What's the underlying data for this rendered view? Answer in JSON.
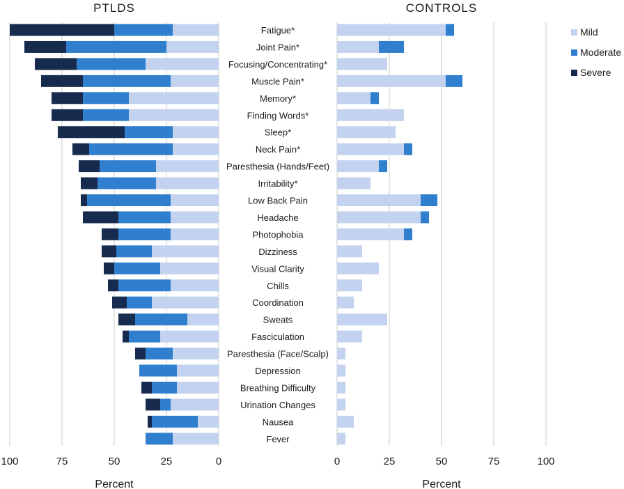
{
  "colors": {
    "Mild": "#c3d2ee",
    "Moderate": "#2f7fce",
    "Severe": "#172b4f",
    "grid": "#d4d4d4"
  },
  "chart_data": {
    "type": "bar",
    "orientation": "horizontal",
    "stacked": true,
    "categories": [
      "Fatigue*",
      "Joint Pain*",
      "Focusing/Concentrating*",
      "Muscle Pain*",
      "Memory*",
      "Finding Words*",
      "Sleep*",
      "Neck Pain*",
      "Paresthesia (Hands/Feet)",
      "Irritability*",
      "Low Back Pain",
      "Headache",
      "Photophobia",
      "Dizziness",
      "Visual Clarity",
      "Chills",
      "Coordination",
      "Sweats",
      "Fasciculation",
      "Paresthesia (Face/Scalp)",
      "Depression",
      "Breathing Difficulty",
      "Urination Changes",
      "Nausea",
      "Fever"
    ],
    "legend": {
      "entries": [
        "Mild",
        "Moderate",
        "Severe"
      ],
      "placement": "top-right"
    },
    "panels": [
      {
        "title": "PTLDS",
        "xlabel": "Percent",
        "xlim": [
          0,
          100
        ],
        "xticks": [
          "100",
          "75",
          "50",
          "25",
          "0"
        ],
        "direction": "reversed",
        "series": [
          {
            "name": "Mild",
            "values": [
              22,
              25,
              35,
              23,
              43,
              43,
              22,
              22,
              30,
              30,
              23,
              23,
              23,
              32,
              28,
              23,
              32,
              15,
              28,
              22,
              20,
              20,
              23,
              10,
              22
            ]
          },
          {
            "name": "Moderate",
            "values": [
              28,
              48,
              33,
              42,
              22,
              22,
              23,
              40,
              27,
              28,
              40,
              25,
              25,
              17,
              22,
              25,
              12,
              25,
              15,
              13,
              18,
              12,
              5,
              22,
              13
            ]
          },
          {
            "name": "Severe",
            "values": [
              50,
              20,
              20,
              20,
              15,
              15,
              32,
              8,
              10,
              8,
              3,
              17,
              8,
              7,
              5,
              5,
              7,
              8,
              3,
              5,
              0,
              5,
              7,
              2,
              0
            ]
          }
        ]
      },
      {
        "title": "CONTROLS",
        "xlabel": "Percent",
        "xlim": [
          0,
          100
        ],
        "xticks": [
          "0",
          "25",
          "50",
          "75",
          "100"
        ],
        "direction": "normal",
        "series": [
          {
            "name": "Mild",
            "values": [
              52,
              20,
              24,
              52,
              16,
              32,
              28,
              32,
              20,
              16,
              40,
              40,
              32,
              12,
              20,
              12,
              8,
              24,
              12,
              4,
              4,
              4,
              4,
              8,
              4
            ]
          },
          {
            "name": "Moderate",
            "values": [
              4,
              12,
              0,
              8,
              4,
              0,
              0,
              4,
              4,
              0,
              8,
              4,
              4,
              0,
              0,
              0,
              0,
              0,
              0,
              0,
              0,
              0,
              0,
              0,
              0
            ]
          },
          {
            "name": "Severe",
            "values": [
              0,
              0,
              0,
              0,
              0,
              0,
              0,
              0,
              0,
              0,
              0,
              0,
              0,
              0,
              0,
              0,
              0,
              0,
              0,
              0,
              0,
              0,
              0,
              0,
              0
            ]
          }
        ]
      }
    ]
  }
}
